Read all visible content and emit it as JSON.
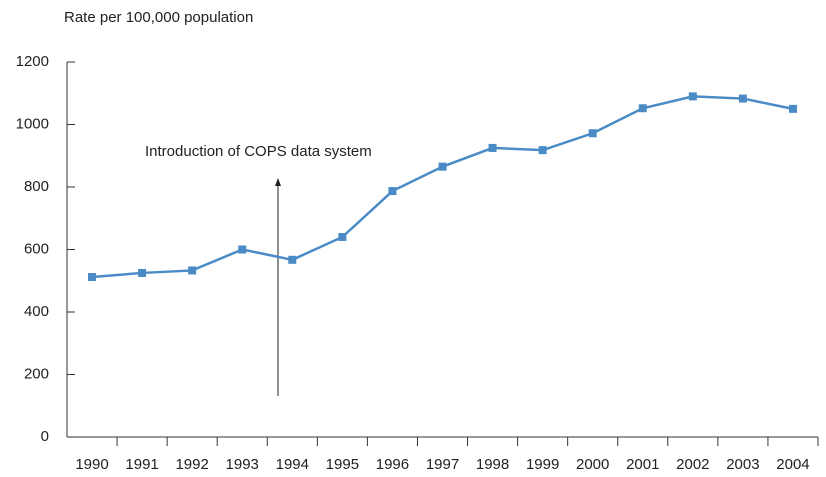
{
  "chart_data": {
    "type": "line",
    "y_axis_label": "Rate per 100,000 population",
    "categories": [
      "1990",
      "1991",
      "1992",
      "1993",
      "1994",
      "1995",
      "1996",
      "1997",
      "1998",
      "1999",
      "2000",
      "2001",
      "2002",
      "2003",
      "2004"
    ],
    "series": [
      {
        "name": "Rate",
        "color": "#4a8bc6",
        "values": [
          512,
          525,
          533,
          600,
          567,
          640,
          787,
          865,
          925,
          918,
          972,
          1052,
          1090,
          1083,
          1050
        ]
      }
    ],
    "ylim": [
      0,
      1200
    ],
    "yticks": [
      0,
      200,
      400,
      600,
      800,
      1000,
      1200
    ],
    "annotation": "Introduction of COPS data system"
  }
}
